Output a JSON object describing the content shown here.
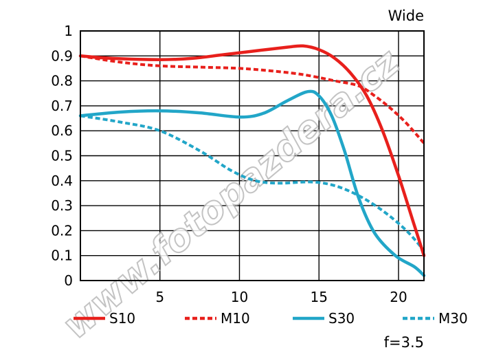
{
  "chart_data": {
    "type": "line",
    "title": "Wide",
    "subtitle": "f=3.5",
    "xlabel": "",
    "ylabel": "",
    "xlim": [
      0,
      21.6
    ],
    "ylim": [
      0,
      1
    ],
    "x_ticks": [
      5,
      10,
      15,
      20
    ],
    "y_ticks": [
      0,
      0.1,
      0.2,
      0.3,
      0.4,
      0.5,
      0.6,
      0.7,
      0.8,
      0.9,
      1
    ],
    "y_tick_labels": [
      "0",
      "0.1",
      "0.2",
      "0.3",
      "0.4",
      "0.5",
      "0.6",
      "0.7",
      "0.8",
      "0.9",
      "1"
    ],
    "grid": true,
    "legend_position": "bottom",
    "watermark": "www.fotopazdera.cz",
    "series": [
      {
        "name": "S10",
        "color": "#e8201c",
        "dashed": false,
        "points": [
          [
            0,
            0.9
          ],
          [
            2,
            0.89
          ],
          [
            5,
            0.885
          ],
          [
            7,
            0.89
          ],
          [
            9,
            0.905
          ],
          [
            11,
            0.92
          ],
          [
            13,
            0.935
          ],
          [
            14,
            0.94
          ],
          [
            15,
            0.925
          ],
          [
            16,
            0.89
          ],
          [
            17,
            0.83
          ],
          [
            18,
            0.74
          ],
          [
            19,
            0.6
          ],
          [
            20,
            0.42
          ],
          [
            21,
            0.22
          ],
          [
            21.6,
            0.1
          ]
        ]
      },
      {
        "name": "M10",
        "color": "#e8201c",
        "dashed": true,
        "points": [
          [
            0,
            0.9
          ],
          [
            2.5,
            0.875
          ],
          [
            5,
            0.86
          ],
          [
            7.5,
            0.855
          ],
          [
            10,
            0.85
          ],
          [
            12,
            0.84
          ],
          [
            14,
            0.825
          ],
          [
            16,
            0.8
          ],
          [
            17.5,
            0.78
          ],
          [
            18.5,
            0.74
          ],
          [
            19.5,
            0.69
          ],
          [
            20.5,
            0.63
          ],
          [
            21.6,
            0.55
          ]
        ]
      },
      {
        "name": "S30",
        "color": "#22a6c8",
        "dashed": false,
        "points": [
          [
            0,
            0.66
          ],
          [
            2.5,
            0.675
          ],
          [
            5,
            0.68
          ],
          [
            7.5,
            0.672
          ],
          [
            10,
            0.655
          ],
          [
            11.5,
            0.67
          ],
          [
            13,
            0.72
          ],
          [
            14.3,
            0.757
          ],
          [
            15,
            0.74
          ],
          [
            15.8,
            0.66
          ],
          [
            16.6,
            0.52
          ],
          [
            17.5,
            0.33
          ],
          [
            18.5,
            0.19
          ],
          [
            19.8,
            0.1
          ],
          [
            21,
            0.055
          ],
          [
            21.6,
            0.02
          ]
        ]
      },
      {
        "name": "M30",
        "color": "#22a6c8",
        "dashed": true,
        "points": [
          [
            0,
            0.66
          ],
          [
            2.5,
            0.635
          ],
          [
            5,
            0.6
          ],
          [
            7.5,
            0.52
          ],
          [
            9.5,
            0.44
          ],
          [
            11,
            0.4
          ],
          [
            12.5,
            0.39
          ],
          [
            14.5,
            0.395
          ],
          [
            16,
            0.38
          ],
          [
            17.5,
            0.34
          ],
          [
            19,
            0.28
          ],
          [
            20.5,
            0.2
          ],
          [
            21.6,
            0.12
          ]
        ]
      }
    ]
  }
}
